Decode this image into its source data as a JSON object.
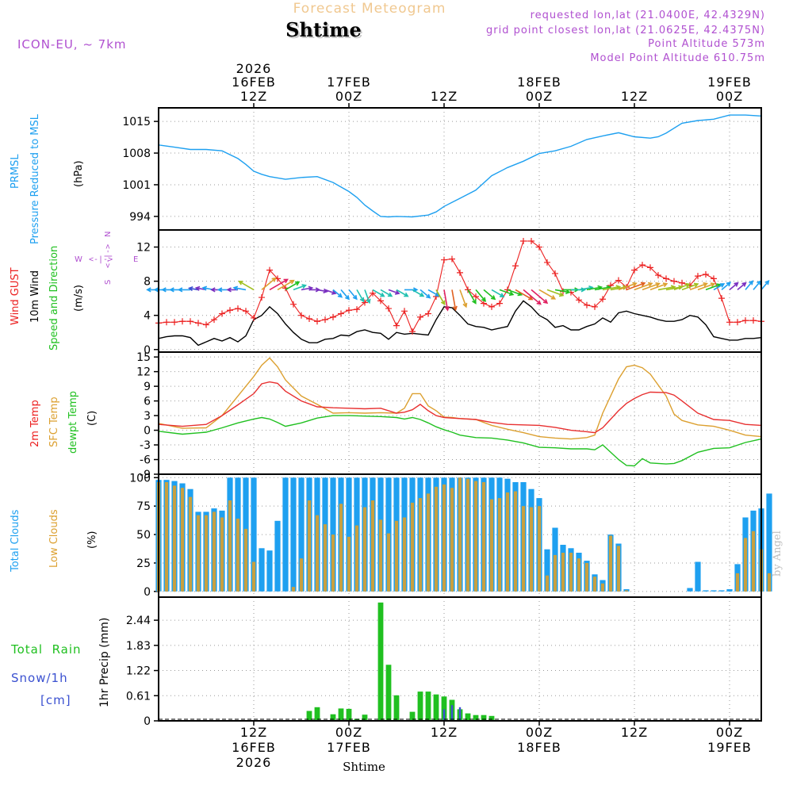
{
  "header": {
    "top_title": "Forecast Meteogram",
    "station": "Shtime",
    "model": "ICON-EU, ~ 7km",
    "requested": "requested lon,lat (21.0400E, 42.4329N)",
    "grid_point": "grid point closest lon,lat (21.0625E, 42.4375N)",
    "point_alt": "Point Altitude 573m",
    "model_alt": "Model Point Altitude 610.75m",
    "footer": "Shtime",
    "watermark": "by Angel"
  },
  "colors": {
    "pressure": "#1ea0f0",
    "gust": "#ec2020",
    "wind": "#000000",
    "t2m": "#e83030",
    "sfc": "#dca030",
    "dew": "#20c020",
    "total_clouds": "#1ea0f0",
    "low_clouds": "#c8a040",
    "rain": "#20c020",
    "snow": "#3a50d0",
    "purple": "#b050d0"
  },
  "time_axis": {
    "t_start_h": 0,
    "t_end_h": 76,
    "top_labels": [
      {
        "h": 12,
        "l1": "2026",
        "l2": "16FEB",
        "l3": "12Z"
      },
      {
        "h": 24,
        "l1": "",
        "l2": "17FEB",
        "l3": "00Z"
      },
      {
        "h": 36,
        "l1": "",
        "l2": "",
        "l3": "12Z"
      },
      {
        "h": 48,
        "l1": "",
        "l2": "18FEB",
        "l3": "00Z"
      },
      {
        "h": 60,
        "l1": "",
        "l2": "",
        "l3": "12Z"
      },
      {
        "h": 72,
        "l1": "",
        "l2": "19FEB",
        "l3": "00Z"
      }
    ],
    "bottom_labels": [
      {
        "h": 12,
        "l1": "12Z",
        "l2": "16FEB",
        "l3": "2026"
      },
      {
        "h": 24,
        "l1": "00Z",
        "l2": "17FEB",
        "l3": ""
      },
      {
        "h": 36,
        "l1": "12Z",
        "l2": "",
        "l3": ""
      },
      {
        "h": 48,
        "l1": "00Z",
        "l2": "18FEB",
        "l3": ""
      },
      {
        "h": 60,
        "l1": "12Z",
        "l2": "",
        "l3": ""
      },
      {
        "h": 72,
        "l1": "00Z",
        "l2": "19FEB",
        "l3": ""
      }
    ]
  },
  "panels": {
    "pressure": {
      "label_lines": [
        "PRMSL",
        "Pressure Reduced to MSL"
      ],
      "unit": "(hPa)",
      "ylim": [
        991,
        1018
      ],
      "ticks": [
        994,
        1001,
        1008,
        1015
      ]
    },
    "wind": {
      "label_lines": [
        "Wind GUST",
        "10m Wind",
        "Speed and Direction"
      ],
      "unit": "(m/s)",
      "ylim": [
        -0.3,
        14
      ],
      "ticks": [
        0,
        4,
        8,
        12
      ],
      "compass": {
        "n": "N",
        "w": "W",
        "e": "E",
        "s": "S"
      }
    },
    "temp": {
      "label_lines": [
        "2m Temp",
        "SFC Temp",
        "dewpt Temp"
      ],
      "unit": "(C)",
      "ylim": [
        -9,
        16
      ],
      "ticks": [
        -9,
        -6,
        -3,
        0,
        3,
        6,
        9,
        12,
        15
      ]
    },
    "clouds": {
      "label_lines": [
        "Total Clouds",
        "Low Clouds"
      ],
      "unit": "(%)",
      "ylim": [
        -5,
        103
      ],
      "ticks": [
        0,
        25,
        50,
        75,
        100
      ]
    },
    "precip": {
      "label_lines": [
        "Total  Rain",
        "Snow/1h",
        "[cm]"
      ],
      "axis_title": "1hr Precip (mm)",
      "ylim": [
        0,
        3.0
      ],
      "ticks": [
        "0",
        "0.61",
        "1.22",
        "1.83",
        "2.44"
      ]
    }
  },
  "chart_data": {
    "type": "line",
    "title": "Forecast Meteogram",
    "x_unit": "hours from 16FEB 00Z",
    "pressure_x": [
      0,
      2,
      4,
      6,
      8,
      10,
      11,
      12,
      13,
      14,
      16,
      18,
      20,
      22,
      24,
      25,
      26,
      27,
      28,
      29,
      30,
      32,
      34,
      35,
      36,
      38,
      40,
      42,
      44,
      46,
      48,
      50,
      52,
      54,
      56,
      58,
      60,
      62,
      63,
      64,
      66,
      68,
      70,
      72,
      74,
      76
    ],
    "pressure_hpa": [
      1009.8,
      1009.3,
      1008.8,
      1008.8,
      1008.5,
      1006.8,
      1005.5,
      1004.0,
      1003.3,
      1002.8,
      1002.2,
      1002.6,
      1002.8,
      1001.5,
      999.5,
      998.2,
      996.5,
      995.2,
      994.0,
      993.9,
      994.0,
      993.9,
      994.3,
      995.0,
      996.2,
      998.0,
      999.8,
      1003.0,
      1004.8,
      1006.2,
      1007.9,
      1008.5,
      1009.5,
      1011.0,
      1011.8,
      1012.5,
      1011.6,
      1011.3,
      1011.6,
      1012.4,
      1014.6,
      1015.2,
      1015.5,
      1016.4,
      1016.4,
      1016.2
    ],
    "wind_x": [
      0,
      1,
      2,
      3,
      4,
      5,
      6,
      7,
      8,
      9,
      10,
      11,
      12,
      13,
      14,
      15,
      16,
      17,
      18,
      19,
      20,
      21,
      22,
      23,
      24,
      25,
      26,
      27,
      28,
      29,
      30,
      31,
      32,
      33,
      34,
      35,
      36,
      37,
      38,
      39,
      40,
      41,
      42,
      43,
      44,
      45,
      46,
      47,
      48,
      49,
      50,
      51,
      52,
      53,
      54,
      55,
      56,
      57,
      58,
      59,
      60,
      61,
      62,
      63,
      64,
      65,
      66,
      67,
      68,
      69,
      70,
      71,
      72,
      73,
      74,
      75,
      76
    ],
    "wind10_ms": [
      1.3,
      1.5,
      1.6,
      1.6,
      1.4,
      0.5,
      0.9,
      1.3,
      1.0,
      1.4,
      0.9,
      1.6,
      3.5,
      4.0,
      5.0,
      4.2,
      3.0,
      2.0,
      1.2,
      0.8,
      0.8,
      1.2,
      1.3,
      1.7,
      1.6,
      2.1,
      2.3,
      2.0,
      1.9,
      1.2,
      2.0,
      1.8,
      1.9,
      1.8,
      1.7,
      3.5,
      5.0,
      4.9,
      4.0,
      3.0,
      2.7,
      2.6,
      2.3,
      2.5,
      2.7,
      4.5,
      5.7,
      5.0,
      4.0,
      3.5,
      2.6,
      2.8,
      2.3,
      2.3,
      2.7,
      3.0,
      3.7,
      3.2,
      4.3,
      4.5,
      4.2,
      4.0,
      3.8,
      3.5,
      3.3,
      3.3,
      3.5,
      4.0,
      3.8,
      2.9,
      1.5,
      1.3,
      1.1,
      1.1,
      1.3,
      1.3,
      1.4
    ],
    "gust_ms": [
      3.1,
      3.2,
      3.2,
      3.3,
      3.3,
      3.1,
      2.9,
      3.5,
      4.2,
      4.6,
      4.8,
      4.5,
      3.7,
      6.1,
      9.3,
      8.3,
      7.2,
      5.3,
      4.0,
      3.6,
      3.3,
      3.5,
      3.8,
      4.2,
      4.6,
      4.7,
      5.5,
      6.6,
      5.7,
      4.8,
      2.8,
      4.5,
      2.1,
      3.8,
      4.2,
      6.2,
      10.5,
      10.6,
      9.0,
      7.0,
      6.2,
      5.4,
      5.0,
      5.4,
      7.0,
      9.8,
      12.7,
      12.7,
      12.0,
      10.2,
      8.9,
      6.8,
      6.7,
      5.8,
      5.2,
      5.0,
      5.9,
      7.5,
      8.1,
      7.3,
      9.3,
      9.9,
      9.6,
      8.7,
      8.3,
      8.0,
      7.8,
      7.5,
      8.6,
      8.8,
      8.3,
      6.0,
      3.2,
      3.2,
      3.4,
      3.4,
      3.3
    ],
    "wind_dir_deg": [
      90,
      90,
      90,
      90,
      90,
      100,
      100,
      100,
      90,
      90,
      90,
      100,
      120,
      230,
      240,
      240,
      240,
      250,
      260,
      270,
      280,
      290,
      310,
      320,
      320,
      330,
      340,
      300,
      300,
      290,
      300,
      270,
      300,
      310,
      300,
      330,
      350,
      350,
      340,
      330,
      320,
      310,
      300,
      290,
      290,
      300,
      310,
      310,
      300,
      290,
      280,
      270,
      270,
      260,
      260,
      260,
      260,
      260,
      250,
      250,
      250,
      250,
      250,
      260,
      260,
      250,
      250,
      250,
      250,
      250,
      240,
      230,
      230,
      230,
      220,
      220,
      220
    ],
    "temp_x": [
      0,
      3,
      6,
      8,
      10,
      12,
      13,
      14,
      15,
      16,
      18,
      20,
      22,
      24,
      26,
      28,
      30,
      31,
      32,
      33,
      34,
      35,
      36,
      37,
      38,
      40,
      42,
      44,
      46,
      48,
      50,
      52,
      54,
      55,
      56,
      58,
      59,
      60,
      61,
      62,
      64,
      65,
      66,
      68,
      70,
      72,
      74,
      76
    ],
    "t2m_c": [
      1.2,
      0.8,
      1.2,
      3.0,
      5.2,
      7.5,
      9.5,
      9.9,
      9.6,
      8.0,
      6.0,
      4.8,
      4.6,
      4.5,
      4.4,
      4.5,
      3.5,
      3.7,
      4.2,
      5.3,
      4.0,
      3.0,
      2.6,
      2.5,
      2.4,
      2.2,
      1.6,
      1.2,
      1.1,
      1.0,
      0.6,
      0.0,
      -0.3,
      -0.5,
      0.5,
      4.0,
      5.5,
      6.5,
      7.3,
      7.8,
      7.7,
      7.2,
      6.0,
      3.5,
      2.2,
      2.0,
      1.2,
      1.0
    ],
    "sfc_c": [
      1.4,
      0.4,
      0.5,
      3.0,
      7.0,
      11.0,
      13.3,
      14.8,
      13.0,
      10.3,
      7.0,
      5.3,
      3.5,
      3.6,
      3.5,
      3.6,
      3.5,
      4.5,
      7.5,
      7.5,
      5.0,
      4.0,
      2.7,
      2.6,
      2.4,
      2.2,
      1.0,
      0.2,
      -0.5,
      -1.3,
      -1.6,
      -1.8,
      -1.5,
      -1.0,
      3.5,
      10.5,
      13.0,
      13.3,
      12.8,
      11.5,
      7.0,
      3.3,
      2.0,
      1.1,
      0.8,
      0.0,
      -1.0,
      -1.3
    ],
    "dew_c": [
      -0.2,
      -0.8,
      -0.4,
      0.5,
      1.5,
      2.3,
      2.6,
      2.3,
      1.6,
      0.8,
      1.5,
      2.5,
      3.0,
      3.0,
      2.9,
      2.8,
      2.6,
      2.3,
      2.6,
      2.2,
      1.5,
      0.7,
      0.1,
      -0.4,
      -1.0,
      -1.5,
      -1.6,
      -2.0,
      -2.6,
      -3.5,
      -3.6,
      -3.8,
      -3.8,
      -4.0,
      -3.0,
      -6.0,
      -7.2,
      -7.3,
      -5.8,
      -6.7,
      -6.9,
      -6.8,
      -6.2,
      -4.5,
      -3.7,
      -3.6,
      -2.5,
      -1.8
    ],
    "clouds_x_start_h": 0,
    "clouds_x_step_h": 1,
    "total_clouds_pct": [
      98,
      98,
      97,
      95,
      90,
      70,
      70,
      73,
      71,
      100,
      100,
      100,
      100,
      38,
      36,
      62,
      100,
      100,
      100,
      100,
      100,
      100,
      100,
      100,
      100,
      100,
      100,
      100,
      100,
      100,
      100,
      100,
      100,
      100,
      100,
      100,
      100,
      100,
      100,
      100,
      100,
      100,
      100,
      100,
      99,
      96,
      96,
      90,
      82,
      37,
      56,
      41,
      38,
      34,
      27,
      15,
      10,
      50,
      42,
      2,
      0,
      0,
      0,
      0,
      0,
      0,
      0,
      3,
      26,
      1,
      1,
      1,
      2,
      24,
      65,
      71,
      73,
      86
    ],
    "low_clouds_pct": [
      96,
      96,
      93,
      91,
      83,
      67,
      67,
      70,
      65,
      80,
      64,
      55,
      26,
      0,
      0,
      0,
      0,
      4,
      29,
      80,
      67,
      59,
      50,
      77,
      48,
      58,
      74,
      80,
      63,
      51,
      62,
      65,
      78,
      82,
      86,
      92,
      94,
      91,
      100,
      99,
      97,
      96,
      81,
      82,
      87,
      88,
      75,
      74,
      75,
      14,
      32,
      34,
      34,
      29,
      25,
      13,
      7,
      49,
      40,
      1,
      0,
      0,
      0,
      0,
      0,
      0,
      0,
      0,
      0,
      0,
      0,
      0,
      0,
      16,
      47,
      53,
      37,
      16
    ],
    "precip_x_start_h": 0,
    "precip_x_step_h": 1,
    "rain_mm": [
      0,
      0,
      0.02,
      0,
      0,
      0,
      0,
      0,
      0,
      0,
      0,
      0,
      0,
      0,
      0,
      0,
      0,
      0,
      0,
      0.24,
      0.33,
      0,
      0.16,
      0.3,
      0.29,
      0.05,
      0.15,
      0,
      2.87,
      1.36,
      0.62,
      0,
      0.22,
      0.71,
      0.71,
      0.64,
      0.59,
      0.51,
      0.28,
      0.18,
      0.14,
      0.14,
      0.12,
      0,
      0,
      0,
      0,
      0,
      0,
      0,
      0,
      0,
      0,
      0,
      0,
      0,
      0,
      0,
      0,
      0,
      0,
      0,
      0,
      0,
      0,
      0,
      0,
      0,
      0,
      0,
      0,
      0,
      0,
      0,
      0,
      0
    ],
    "snow_cm": [
      0,
      0,
      0,
      0,
      0,
      0,
      0,
      0,
      0,
      0,
      0,
      0,
      0,
      0,
      0,
      0,
      0,
      0,
      0,
      0,
      0,
      0,
      0,
      0,
      0,
      0,
      0,
      0,
      0,
      0,
      0,
      0,
      0,
      0,
      0,
      0,
      0.28,
      0.38,
      0.33,
      0,
      0,
      0,
      0,
      0,
      0,
      0,
      0,
      0,
      0,
      0,
      0,
      0,
      0,
      0,
      0,
      0,
      0,
      0,
      0,
      0,
      0,
      0,
      0,
      0,
      0,
      0,
      0,
      0,
      0,
      0,
      0,
      0,
      0,
      0,
      0,
      0
    ],
    "ylabel": "1hr Precip (mm)",
    "xlabel": "Shtime"
  }
}
